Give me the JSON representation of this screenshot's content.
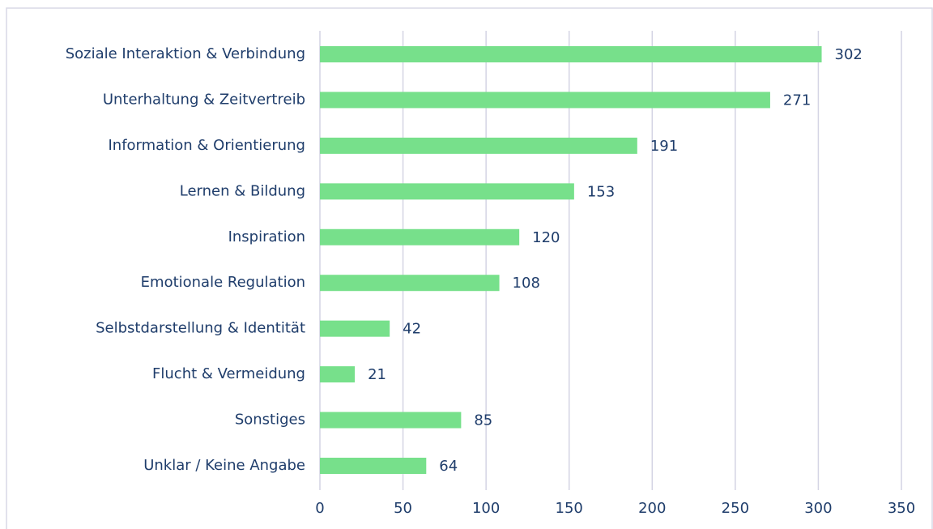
{
  "chart_data": {
    "type": "hbar",
    "categories": [
      "Soziale Interaktion & Verbindung",
      "Unterhaltung & Zeitvertreib",
      "Information & Orientierung",
      "Lernen & Bildung",
      "Inspiration",
      "Emotionale Regulation",
      "Selbstdarstellung & Identität",
      "Flucht & Vermeidung",
      "Sonstiges",
      "Unklar / Keine Angabe"
    ],
    "values": [
      302,
      271,
      191,
      153,
      120,
      108,
      42,
      21,
      85,
      64
    ],
    "color": "#77e08b",
    "xlim": [
      0,
      350
    ],
    "xticks": [
      0,
      50,
      100,
      150,
      200,
      250,
      300,
      350
    ],
    "grid": true
  }
}
